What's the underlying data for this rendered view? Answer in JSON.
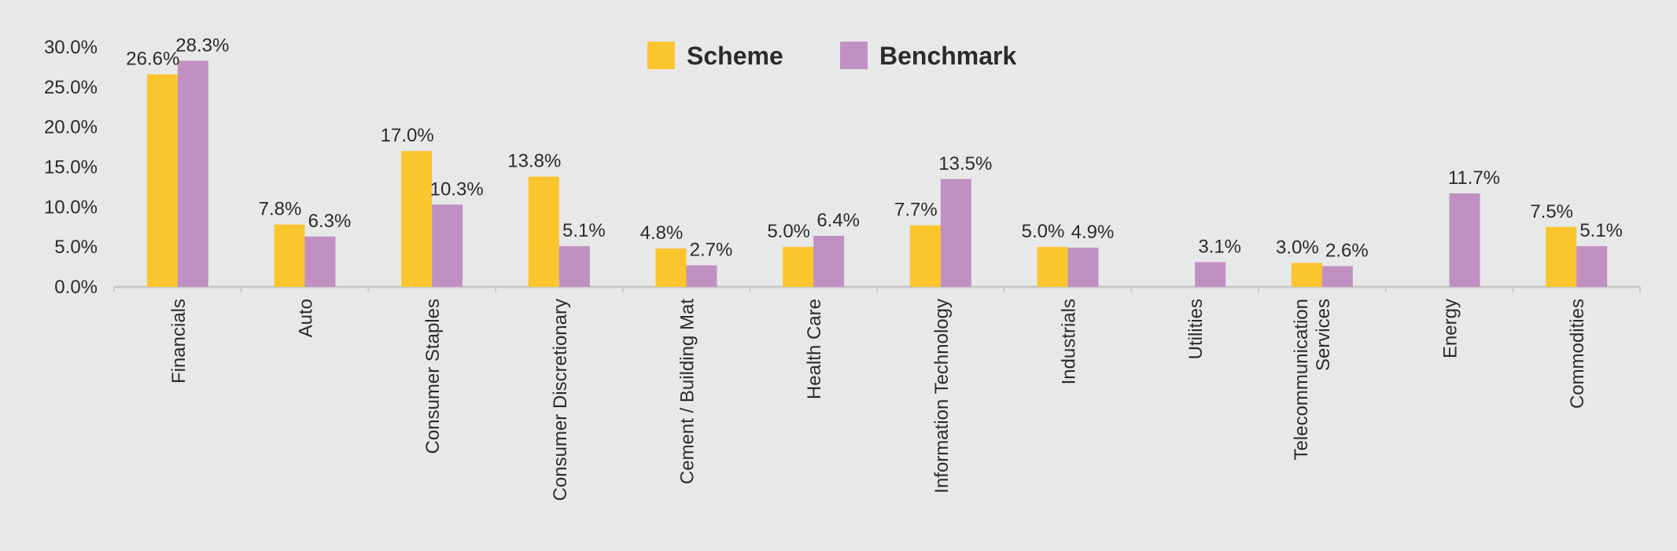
{
  "chart_data": {
    "type": "bar",
    "categories": [
      [
        "Financials"
      ],
      [
        "Auto"
      ],
      [
        "Consumer Staples"
      ],
      [
        "Consumer Discretionary"
      ],
      [
        "Cement / Building Mat"
      ],
      [
        "Health Care"
      ],
      [
        "Information Technology"
      ],
      [
        "Industrials"
      ],
      [
        "Utilities"
      ],
      [
        "Telecommunication",
        "Services"
      ],
      [
        "Energy"
      ],
      [
        "Commodities"
      ]
    ],
    "series": [
      {
        "name": "Scheme",
        "color": "#fbc52d",
        "values": [
          26.6,
          7.8,
          17.0,
          13.8,
          4.8,
          5.0,
          7.7,
          5.0,
          null,
          3.0,
          null,
          7.5
        ],
        "labels": [
          "26.6%",
          "7.8%",
          "17.0%",
          "13.8%",
          "4.8%",
          "5.0%",
          "7.7%",
          "5.0%",
          "",
          "3.0%",
          "",
          "7.5%"
        ]
      },
      {
        "name": "Benchmark",
        "color": "#c190c2",
        "values": [
          28.3,
          6.3,
          10.3,
          5.1,
          2.7,
          6.4,
          13.5,
          4.9,
          3.1,
          2.6,
          11.7,
          5.1
        ],
        "labels": [
          "28.3%",
          "6.3%",
          "10.3%",
          "5.1%",
          "2.7%",
          "6.4%",
          "13.5%",
          "4.9%",
          "3.1%",
          "2.6%",
          "11.7%",
          "5.1%"
        ]
      }
    ],
    "yticks": [
      0,
      5,
      10,
      15,
      20,
      25,
      30
    ],
    "ytick_labels": [
      "0.0%",
      "5.0%",
      "10.0%",
      "15.0%",
      "20.0%",
      "25.0%",
      "30.0%"
    ],
    "ylim": [
      0,
      30
    ],
    "grid": false,
    "legend": "top-center",
    "axis_color": "#c9c9c9"
  }
}
